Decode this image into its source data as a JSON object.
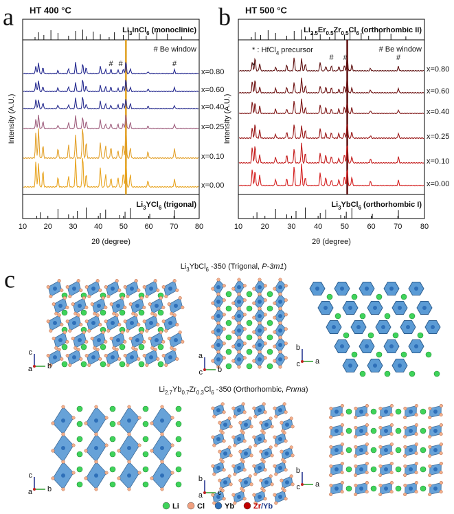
{
  "panels": [
    {
      "letter": "a",
      "title": "HT 400 °C",
      "xlabel": "2θ (degree)",
      "ylabel": "Intensity (A.U.)",
      "xlim": [
        10,
        80
      ],
      "xticks": [
        10,
        20,
        30,
        40,
        50,
        60,
        70,
        80
      ],
      "ref_top": [
        {
          "text": "Li"
        },
        {
          "text": "3",
          "sub": true
        },
        {
          "text": "InCl"
        },
        {
          "text": "6",
          "sub": true
        },
        {
          "text": " (monoclinic)"
        }
      ],
      "ref_bottom": [
        {
          "text": "Li"
        },
        {
          "text": "3",
          "sub": true
        },
        {
          "text": "YCl"
        },
        {
          "text": "6",
          "sub": true
        },
        {
          "text": " (trigonal)"
        }
      ],
      "window_note": "# Be window",
      "hash": "#",
      "traces": [
        {
          "label": "x=0.80",
          "color": "#23288f"
        },
        {
          "label": "x=0.60",
          "color": "#23288f"
        },
        {
          "label": "x=0.40",
          "color": "#2a2f90"
        },
        {
          "label": "x=0.25",
          "color": "#a0607f"
        },
        {
          "label": "x=0.10",
          "color": "#e3a12b"
        },
        {
          "label": "x=0.00",
          "color": "#e8a420"
        }
      ]
    },
    {
      "letter": "b",
      "title": "HT 500 °C",
      "xlabel": "2θ (degree)",
      "ylabel": "Intensity (A.U.)",
      "xlim": [
        10,
        80
      ],
      "xticks": [
        10,
        20,
        30,
        40,
        50,
        60,
        70,
        80
      ],
      "ref_top": [
        {
          "text": "Li"
        },
        {
          "text": "2.5",
          "sub": true
        },
        {
          "text": "Er"
        },
        {
          "text": "0.5",
          "sub": true
        },
        {
          "text": "Zr"
        },
        {
          "text": "0.5",
          "sub": true
        },
        {
          "text": "Cl"
        },
        {
          "text": "6",
          "sub": true
        },
        {
          "text": " (orthorhombic II)"
        }
      ],
      "ref_bottom": [
        {
          "text": "Li"
        },
        {
          "text": "3",
          "sub": true
        },
        {
          "text": "YbCl"
        },
        {
          "text": "6",
          "sub": true
        },
        {
          "text": " (orthorhombic I)"
        }
      ],
      "window_note": "# Be window",
      "hash": "#",
      "star": "*",
      "precursor": [
        {
          "text": "* : HfCl"
        },
        {
          "text": "4",
          "sub": true
        },
        {
          "text": " precursor"
        }
      ],
      "traces": [
        {
          "label": "x=0.80",
          "color": "#5e1010"
        },
        {
          "label": "x=0.60",
          "color": "#6e1212"
        },
        {
          "label": "x=0.40",
          "color": "#7e1515"
        },
        {
          "label": "x=0.25",
          "color": "#9a1818"
        },
        {
          "label": "x=0.10",
          "color": "#c41c1c"
        },
        {
          "label": "x=0.00",
          "color": "#d42020"
        }
      ]
    }
  ],
  "section_letter": "c",
  "structures": [
    {
      "title": [
        {
          "text": "Li"
        },
        {
          "text": "3",
          "sub": true
        },
        {
          "text": "YbCl"
        },
        {
          "text": "6",
          "sub": true
        },
        {
          "text": " -350 (Trigonal, "
        },
        {
          "text": "P-3m1",
          "italic": true
        },
        {
          "text": ")"
        }
      ],
      "axes": [
        [
          "c",
          "a",
          "b"
        ],
        [
          "a",
          "c",
          "b"
        ],
        [
          "b",
          "c",
          "a"
        ]
      ]
    },
    {
      "title": [
        {
          "text": "Li"
        },
        {
          "text": "2.7",
          "sub": true
        },
        {
          "text": "Yb"
        },
        {
          "text": "0.7",
          "sub": true
        },
        {
          "text": "Zr"
        },
        {
          "text": "0.3",
          "sub": true
        },
        {
          "text": "Cl"
        },
        {
          "text": "6",
          "sub": true
        },
        {
          "text": " -350   (Orthorhombic, "
        },
        {
          "text": "Pnma",
          "italic": true
        },
        {
          "text": ")"
        }
      ],
      "axes": [
        [
          "c",
          "a",
          "b"
        ],
        [
          "b",
          "a",
          "c"
        ],
        [
          "b",
          "c",
          "a"
        ]
      ]
    }
  ],
  "legend": [
    {
      "runs": [
        {
          "text": "Li"
        }
      ],
      "color": "#3fd35a"
    },
    {
      "runs": [
        {
          "text": "Cl"
        }
      ],
      "color": "#f0a080"
    },
    {
      "runs": [
        {
          "text": "Yb"
        }
      ],
      "color": "#2e6fb8"
    },
    {
      "runs": [
        {
          "text": "Zr",
          "color": "#c00000"
        },
        {
          "text": "/Yb",
          "color": "#1f3a8a"
        }
      ],
      "color": "#c00000"
    }
  ]
}
